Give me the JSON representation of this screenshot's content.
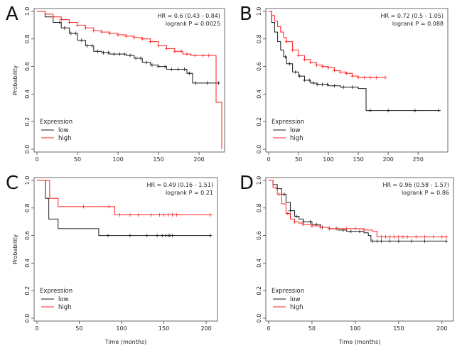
{
  "colors": {
    "low": "#1a1a1a",
    "high": "#ff2020"
  },
  "chart_data": [
    {
      "type": "line",
      "panel": "A",
      "hr_text": "HR = 0.6 (0.43 - 0.84)",
      "p_text": "logrank P = 0.0025",
      "ylabel": "Probability",
      "xlabel": "",
      "xlim": [
        0,
        228
      ],
      "ylim": [
        0,
        1.0
      ],
      "xticks": [
        "0",
        "50",
        "100",
        "150",
        "200"
      ],
      "yticks": [
        "0.0",
        "0.2",
        "0.4",
        "0.6",
        "0.8",
        "1.0"
      ],
      "legend_title": "Expression",
      "series": [
        {
          "name": "low",
          "x": [
            0,
            10,
            20,
            30,
            40,
            50,
            60,
            70,
            80,
            90,
            100,
            110,
            120,
            130,
            140,
            150,
            160,
            170,
            180,
            185,
            192,
            200,
            210,
            225
          ],
          "y": [
            1.0,
            0.96,
            0.92,
            0.88,
            0.84,
            0.79,
            0.75,
            0.71,
            0.7,
            0.69,
            0.69,
            0.68,
            0.66,
            0.63,
            0.61,
            0.6,
            0.58,
            0.58,
            0.58,
            0.55,
            0.48,
            0.48,
            0.48,
            0.48
          ],
          "censor_x": [
            28,
            34,
            42,
            48,
            55,
            62,
            68,
            75,
            82,
            88,
            95,
            102,
            108,
            115,
            122,
            128,
            135,
            142,
            150,
            158,
            166,
            174,
            182,
            188,
            196,
            210,
            224
          ]
        },
        {
          "name": "high",
          "x": [
            0,
            10,
            20,
            30,
            40,
            50,
            60,
            70,
            80,
            90,
            100,
            110,
            120,
            130,
            140,
            150,
            160,
            170,
            180,
            190,
            200,
            210,
            217,
            221,
            228
          ],
          "y": [
            1.0,
            0.98,
            0.96,
            0.94,
            0.92,
            0.9,
            0.88,
            0.86,
            0.85,
            0.84,
            0.83,
            0.82,
            0.81,
            0.8,
            0.78,
            0.75,
            0.73,
            0.71,
            0.69,
            0.68,
            0.68,
            0.68,
            0.68,
            0.34,
            0.0
          ],
          "censor_x": [
            20,
            30,
            40,
            50,
            60,
            70,
            80,
            90,
            100,
            110,
            120,
            130,
            140,
            150,
            160,
            170,
            178,
            185,
            195,
            205,
            212
          ]
        }
      ]
    },
    {
      "type": "line",
      "panel": "B",
      "hr_text": "HR = 0.72 (0.5 - 1.05)",
      "p_text": "logrank P = 0.088",
      "ylabel": "",
      "xlabel": "",
      "xlim": [
        0,
        295
      ],
      "ylim": [
        0,
        1.0
      ],
      "xticks": [
        "0",
        "50",
        "100",
        "150",
        "200",
        "250"
      ],
      "yticks": [
        "0.0",
        "0.2",
        "0.4",
        "0.6",
        "0.8",
        "1.0"
      ],
      "legend_title": "Expression",
      "series": [
        {
          "name": "low",
          "x": [
            0,
            5,
            10,
            15,
            20,
            25,
            30,
            40,
            50,
            60,
            70,
            80,
            90,
            100,
            120,
            150,
            160,
            163,
            200,
            250,
            285
          ],
          "y": [
            1.0,
            0.92,
            0.85,
            0.78,
            0.72,
            0.67,
            0.62,
            0.56,
            0.53,
            0.5,
            0.48,
            0.47,
            0.47,
            0.46,
            0.45,
            0.44,
            0.44,
            0.28,
            0.28,
            0.28,
            0.28
          ],
          "censor_x": [
            28,
            35,
            45,
            52,
            60,
            68,
            75,
            82,
            90,
            98,
            110,
            125,
            140,
            170,
            200,
            245,
            285
          ]
        },
        {
          "name": "high",
          "x": [
            0,
            5,
            10,
            15,
            20,
            25,
            30,
            40,
            50,
            60,
            70,
            80,
            90,
            100,
            110,
            120,
            130,
            140,
            150,
            160,
            170,
            195
          ],
          "y": [
            1.0,
            0.97,
            0.93,
            0.89,
            0.85,
            0.81,
            0.78,
            0.72,
            0.68,
            0.65,
            0.63,
            0.61,
            0.6,
            0.59,
            0.57,
            0.56,
            0.55,
            0.53,
            0.52,
            0.52,
            0.52,
            0.52
          ],
          "censor_x": [
            30,
            40,
            50,
            60,
            70,
            80,
            90,
            100,
            110,
            120,
            130,
            140,
            150,
            160,
            170,
            180,
            195
          ]
        }
      ]
    },
    {
      "type": "line",
      "panel": "C",
      "hr_text": "HR = 0.49 (0.16 - 1.51)",
      "p_text": "logrank P = 0.21",
      "ylabel": "Probability",
      "xlabel": "Time (months)",
      "xlim": [
        0,
        210
      ],
      "ylim": [
        0,
        1.0
      ],
      "xticks": [
        "0",
        "50",
        "100",
        "150",
        "200"
      ],
      "yticks": [
        "0.0",
        "0.2",
        "0.4",
        "0.6",
        "0.8",
        "1.0"
      ],
      "legend_title": "Expression",
      "series": [
        {
          "name": "low",
          "x": [
            0,
            8,
            10,
            14,
            20,
            25,
            70,
            73,
            150,
            205
          ],
          "y": [
            1.0,
            1.0,
            0.87,
            0.72,
            0.72,
            0.65,
            0.65,
            0.6,
            0.6,
            0.6
          ],
          "censor_x": [
            84,
            110,
            130,
            142,
            148,
            152,
            155,
            157,
            160,
            205
          ]
        },
        {
          "name": "high",
          "x": [
            0,
            12,
            15,
            25,
            90,
            92,
            205
          ],
          "y": [
            1.0,
            1.0,
            0.87,
            0.81,
            0.81,
            0.75,
            0.75
          ],
          "censor_x": [
            55,
            85,
            98,
            110,
            120,
            135,
            145,
            150,
            155,
            160,
            165,
            205
          ]
        }
      ]
    },
    {
      "type": "line",
      "panel": "D",
      "hr_text": "HR = 0.96 (0.58 - 1.57)",
      "p_text": "logrank P = 0.86",
      "ylabel": "",
      "xlabel": "Time (months)",
      "xlim": [
        0,
        210
      ],
      "ylim": [
        0,
        1.0
      ],
      "xticks": [
        "0",
        "50",
        "100",
        "150",
        "200"
      ],
      "yticks": [
        "0.0",
        "0.2",
        "0.4",
        "0.6",
        "0.8",
        "1.0"
      ],
      "legend_title": "Expression",
      "series": [
        {
          "name": "low",
          "x": [
            0,
            5,
            10,
            15,
            20,
            25,
            30,
            35,
            40,
            50,
            60,
            70,
            80,
            90,
            100,
            110,
            115,
            118,
            150,
            205
          ],
          "y": [
            1.0,
            0.97,
            0.94,
            0.9,
            0.84,
            0.78,
            0.74,
            0.72,
            0.7,
            0.68,
            0.66,
            0.65,
            0.64,
            0.63,
            0.63,
            0.62,
            0.6,
            0.56,
            0.56,
            0.56
          ],
          "censor_x": [
            10,
            18,
            25,
            32,
            40,
            48,
            55,
            62,
            70,
            78,
            86,
            95,
            105,
            120,
            125,
            130,
            140,
            150,
            165,
            180,
            205
          ]
        },
        {
          "name": "high",
          "x": [
            0,
            5,
            10,
            15,
            20,
            25,
            30,
            35,
            40,
            50,
            60,
            70,
            80,
            100,
            110,
            120,
            125,
            205
          ],
          "y": [
            1.0,
            0.95,
            0.9,
            0.83,
            0.76,
            0.72,
            0.7,
            0.69,
            0.68,
            0.67,
            0.66,
            0.65,
            0.65,
            0.65,
            0.64,
            0.63,
            0.59,
            0.59
          ],
          "censor_x": [
            12,
            22,
            30,
            40,
            50,
            60,
            70,
            80,
            90,
            100,
            110,
            130,
            135,
            140,
            145,
            150,
            155,
            160,
            170,
            180,
            190,
            200,
            205
          ]
        }
      ]
    }
  ]
}
